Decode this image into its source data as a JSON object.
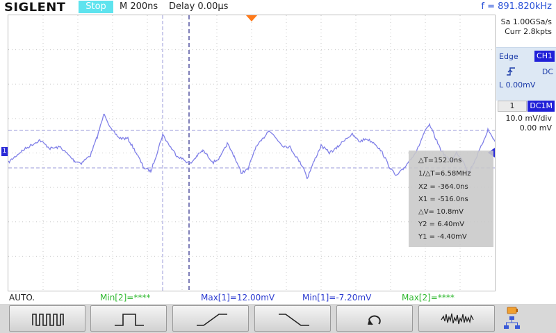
{
  "header": {
    "brand": "SIGLENT",
    "run_state": "Stop",
    "timebase": "M 200ns",
    "delay": "Delay 0.00μs",
    "frequency": "f = 891.820kHz"
  },
  "acquisition": {
    "sample_rate": "Sa 1.00GSa/s",
    "memory_depth": "Curr 2.8kpts"
  },
  "trigger": {
    "type": "Edge",
    "source": "CH1",
    "slope_icon": "rising-edge-icon",
    "coupling": "DC",
    "level": "L  0.00mV"
  },
  "channel": {
    "number": "1",
    "coupling": "DC1M",
    "scale": "10.0 mV/div",
    "offset": "0.00 mV",
    "marker": "1"
  },
  "cursors": {
    "delta_t": "△T=152.0ns",
    "inverse_delta_t": "1/△T=6.58MHz",
    "x2": "X2 = -364.0ns",
    "x1": "X1 = -516.0ns",
    "delta_v": "△V= 10.8mV",
    "y2": "Y2 = 6.40mV",
    "y1": "Y1 = -4.40mV"
  },
  "measurements": {
    "mode": "AUTO.",
    "min2": "Min[2]=****",
    "max1": "Max[1]=12.00mV",
    "min1": "Min[1]=-7.20mV",
    "max2": "Max[2]=****"
  },
  "softkeys": [
    {
      "icon": "pulse-train-icon"
    },
    {
      "icon": "single-pulse-icon"
    },
    {
      "icon": "rising-ramp-icon"
    },
    {
      "icon": "falling-ramp-icon"
    },
    {
      "icon": "return-icon"
    },
    {
      "icon": "noise-waveform-icon"
    }
  ],
  "colors": {
    "trace": "#8080e8",
    "cursor_line": "#9a9ad8",
    "accent": "#2020d8",
    "trigger_marker": "#ff7a1a",
    "run_state_bg": "#5ee3ee"
  }
}
